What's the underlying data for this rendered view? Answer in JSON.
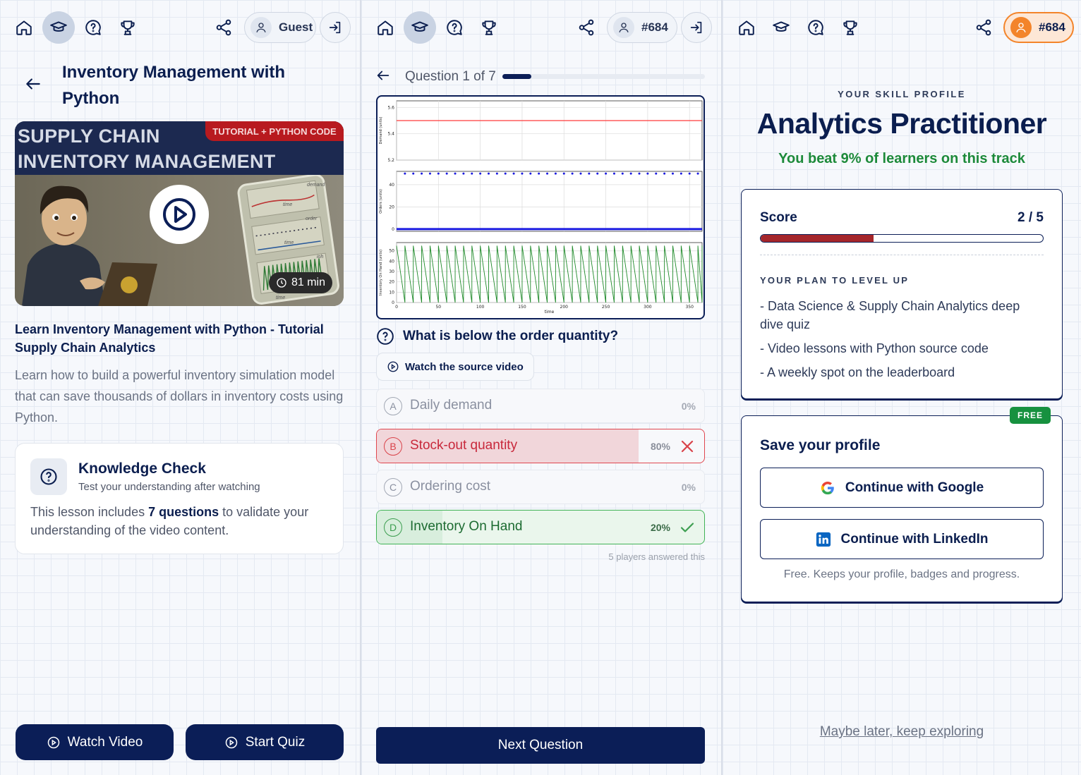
{
  "nav": {
    "guest_label": "Guest",
    "player_id": "#684"
  },
  "lesson": {
    "title": "Inventory Management with Python",
    "thumbnail": {
      "line1": "SUPPLY CHAIN",
      "line2": "INVENTORY MANAGEMENT",
      "tag": "TUTORIAL + PYTHON CODE",
      "duration": "81 min",
      "tiny_labels": [
        "demand",
        "time",
        "order",
        "time",
        "ioh",
        "time"
      ]
    },
    "video_title": "Learn Inventory Management with Python - Tutorial Supply Chain Analytics",
    "description": "Learn how to build a powerful inventory simulation model that can save thousands of dollars in inventory costs using Python.",
    "knowledge_check": {
      "heading": "Knowledge Check",
      "subheading": "Test your understanding after watching",
      "body_before": "This lesson includes ",
      "questions": "7 questions",
      "body_after": " to validate your understanding of the video content."
    },
    "watch_label": "Watch Video",
    "quiz_label": "Start Quiz"
  },
  "quiz": {
    "progress_text": "Question 1 of 7",
    "progress_fraction": 0.143,
    "question": "What is below the order quantity?",
    "source_button": "Watch the source video",
    "options": [
      {
        "letter": "A",
        "label": "Daily demand",
        "pct": "0%",
        "state": "neutral",
        "share": 0
      },
      {
        "letter": "B",
        "label": "Stock-out quantity",
        "pct": "80%",
        "state": "wrong",
        "share": 0.8
      },
      {
        "letter": "C",
        "label": "Ordering cost",
        "pct": "0%",
        "state": "neutral",
        "share": 0
      },
      {
        "letter": "D",
        "label": "Inventory On Hand",
        "pct": "20%",
        "state": "correct",
        "share": 0.2
      }
    ],
    "answered_note": "5 players answered this",
    "next_label": "Next Question"
  },
  "chart_data": {
    "type": "line",
    "x_range": [
      0,
      365
    ],
    "xlabel": "time",
    "x_ticks": [
      0,
      50,
      100,
      150,
      200,
      250,
      300,
      350
    ],
    "panels": [
      {
        "ylabel": "Demand (units)",
        "ylim": [
          5.2,
          5.65
        ],
        "y_ticks": [
          "5.2",
          "5.4",
          "5.6"
        ],
        "series": [
          {
            "style": "line",
            "color": "#ff3b3b",
            "value": 5.5
          }
        ]
      },
      {
        "ylabel": "Orders (units)",
        "ylim": [
          -2,
          52
        ],
        "y_ticks": [
          "0",
          "20",
          "40"
        ],
        "series": [
          {
            "style": "points",
            "color": "#1a1ae0",
            "value": 50,
            "every": 10
          },
          {
            "style": "line",
            "color": "#1a1ae0",
            "value": 0
          }
        ]
      },
      {
        "ylabel": "Inventory On Hand (units)",
        "ylim": [
          0,
          58
        ],
        "y_ticks": [
          "0",
          "10",
          "20",
          "30",
          "40",
          "50"
        ],
        "series": [
          {
            "style": "sawtooth",
            "color": "#1f8a2a",
            "peak": 55,
            "period": 10
          }
        ]
      }
    ]
  },
  "profile": {
    "label": "YOUR SKILL PROFILE",
    "title": "Analytics Practitioner",
    "beat_text": "You beat 9% of learners on this track",
    "score_label": "Score",
    "score_value": "2 / 5",
    "score_fraction": 0.4,
    "plan_label": "YOUR PLAN TO LEVEL UP",
    "plan_items": [
      "- Data Science & Supply Chain Analytics deep dive quiz",
      "- Video lessons with Python source code",
      "- A weekly spot on the leaderboard"
    ],
    "free_badge": "FREE",
    "save_heading": "Save your profile",
    "google_label": "Continue with Google",
    "linkedin_label": "Continue with LinkedIn",
    "free_note": "Free. Keeps your profile, badges and progress.",
    "later_link": "Maybe later, keep exploring"
  },
  "colors": {
    "navy": "#0b1e57",
    "orange": "#f3842a",
    "green": "#1d8a3a",
    "red": "#c8283b"
  }
}
